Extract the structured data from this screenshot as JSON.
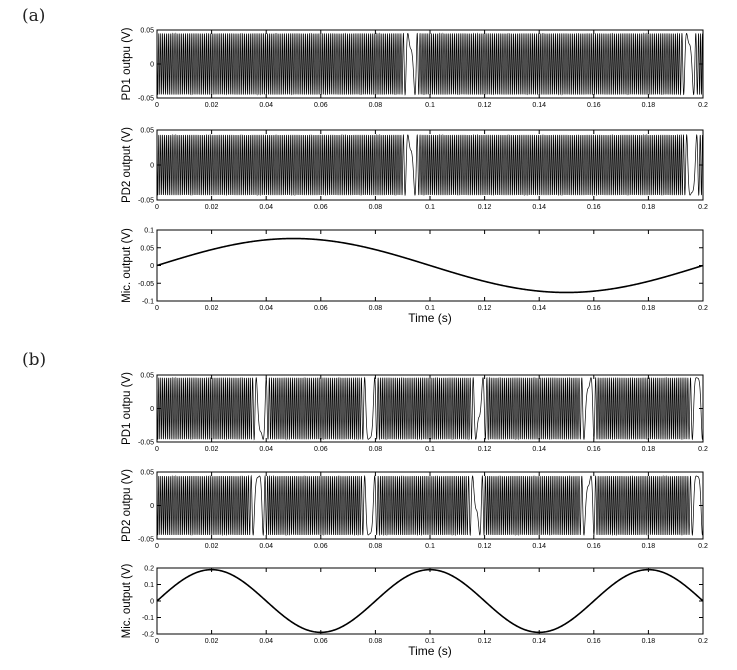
{
  "panel_labels": [
    "(a)",
    "(b)"
  ],
  "chart_data": [
    {
      "type": "line",
      "panel": "(a)",
      "title": "",
      "ylabel": "PD1 outpu (V)",
      "xlabel": "",
      "xlim": [
        0,
        0.2
      ],
      "ylim": [
        -0.05,
        0.05
      ],
      "xticks": [
        "0",
        "0.02",
        "0.04",
        "0.06",
        "0.08",
        "0.1",
        "0.12",
        "0.14",
        "0.16",
        "0.18",
        "0.2"
      ],
      "yticks": [
        "-0.05",
        "0",
        "0.05"
      ],
      "signal": {
        "kind": "interference",
        "amplitude": 0.045,
        "fringe_turning_points": [
          0.093,
          0.195
        ]
      }
    },
    {
      "type": "line",
      "panel": "(a)",
      "title": "",
      "ylabel": "PD2 output (V)",
      "xlabel": "",
      "xlim": [
        0,
        0.2
      ],
      "ylim": [
        -0.05,
        0.05
      ],
      "xticks": [
        "0",
        "0.02",
        "0.04",
        "0.06",
        "0.08",
        "0.1",
        "0.12",
        "0.14",
        "0.16",
        "0.18",
        "0.2"
      ],
      "yticks": [
        "-0.05",
        "0",
        "0.05"
      ],
      "signal": {
        "kind": "interference",
        "amplitude": 0.043,
        "fringe_turning_points": [
          0.093,
          0.196
        ]
      }
    },
    {
      "type": "line",
      "panel": "(a)",
      "title": "",
      "ylabel": "Mic. output (V)",
      "xlabel": "Time (s)",
      "xlim": [
        0,
        0.2
      ],
      "ylim": [
        -0.1,
        0.1
      ],
      "xticks": [
        "0",
        "0.02",
        "0.04",
        "0.06",
        "0.08",
        "0.1",
        "0.12",
        "0.14",
        "0.16",
        "0.18",
        "0.2"
      ],
      "yticks": [
        "-0.1",
        "-0.05",
        "0",
        "0.05",
        "0.1"
      ],
      "signal": {
        "kind": "sine",
        "amplitude": 0.076,
        "period": 0.2,
        "phase_shift": 0.0
      }
    },
    {
      "type": "line",
      "panel": "(b)",
      "title": "",
      "ylabel": "PD1 outpu (V)",
      "xlabel": "",
      "xlim": [
        0,
        0.2
      ],
      "ylim": [
        -0.05,
        0.05
      ],
      "xticks": [
        "0",
        "0.02",
        "0.04",
        "0.06",
        "0.08",
        "0.1",
        "0.12",
        "0.14",
        "0.16",
        "0.18",
        "0.2"
      ],
      "yticks": [
        "-0.05",
        "0",
        "0.05"
      ],
      "signal": {
        "kind": "interference",
        "amplitude": 0.046,
        "fringe_turning_points": [
          0.038,
          0.078,
          0.118,
          0.158,
          0.198
        ]
      }
    },
    {
      "type": "line",
      "panel": "(b)",
      "title": "",
      "ylabel": "PD2 outpu (V)",
      "xlabel": "",
      "xlim": [
        0,
        0.2
      ],
      "ylim": [
        -0.05,
        0.05
      ],
      "xticks": [
        "0",
        "0.02",
        "0.04",
        "0.06",
        "0.08",
        "0.1",
        "0.12",
        "0.14",
        "0.16",
        "0.18",
        "0.2"
      ],
      "yticks": [
        "-0.05",
        "0",
        "0.05"
      ],
      "signal": {
        "kind": "interference",
        "amplitude": 0.044,
        "fringe_turning_points": [
          0.037,
          0.078,
          0.117,
          0.158,
          0.198
        ]
      }
    },
    {
      "type": "line",
      "panel": "(b)",
      "title": "",
      "ylabel": "Mic. output (V)",
      "xlabel": "Time (s)",
      "xlim": [
        0,
        0.2
      ],
      "ylim": [
        -0.2,
        0.2
      ],
      "xticks": [
        "0",
        "0.02",
        "0.04",
        "0.06",
        "0.08",
        "0.1",
        "0.12",
        "0.14",
        "0.16",
        "0.18",
        "0.2"
      ],
      "yticks": [
        "-0.2",
        "-0.1",
        "0",
        "0.1",
        "0.2"
      ],
      "signal": {
        "kind": "sine",
        "amplitude": 0.19,
        "period": 0.08,
        "phase_shift": 0.0
      }
    }
  ]
}
